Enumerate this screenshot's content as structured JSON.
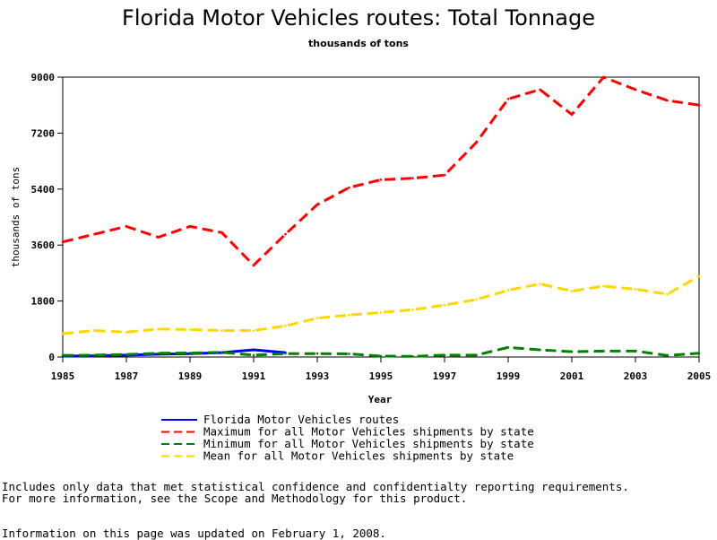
{
  "chart_data": {
    "type": "line",
    "title": "Florida Motor Vehicles routes: Total Tonnage",
    "subtitle": "thousands of tons",
    "xlabel": "Year",
    "ylabel": "thousands of tons",
    "xlim": [
      1985,
      2005
    ],
    "ylim": [
      0,
      9000
    ],
    "xticks": [
      1985,
      1987,
      1989,
      1991,
      1993,
      1995,
      1997,
      1999,
      2001,
      2003,
      2005
    ],
    "yticks": [
      0,
      1800,
      3600,
      5400,
      7200,
      9000
    ],
    "grid": false,
    "legend_position": "bottom",
    "series": [
      {
        "name": "Florida Motor Vehicles routes",
        "color": "#0000ff",
        "style": "solid",
        "x": [
          1985,
          1986,
          1987,
          1988,
          1989,
          1990,
          1991,
          1992
        ],
        "values": [
          30,
          40,
          60,
          90,
          110,
          140,
          230,
          140
        ]
      },
      {
        "name": "Maximum for all Motor Vehicles shipments by state",
        "color": "#ff0000",
        "style": "dashed",
        "x": [
          1985,
          1986,
          1987,
          1988,
          1989,
          1990,
          1991,
          1992,
          1993,
          1994,
          1995,
          1996,
          1997,
          1998,
          1999,
          2000,
          2001,
          2002,
          2003,
          2004,
          2005
        ],
        "values": [
          3700,
          3950,
          4200,
          3850,
          4200,
          4000,
          2950,
          3950,
          4900,
          5450,
          5700,
          5750,
          5850,
          6900,
          8300,
          8600,
          7800,
          9000,
          8600,
          8250,
          8100
        ]
      },
      {
        "name": "Minimum for all Motor Vehicles shipments by state",
        "color": "#008000",
        "style": "dashed",
        "x": [
          1985,
          1986,
          1987,
          1988,
          1989,
          1990,
          1991,
          1992,
          1993,
          1994,
          1995,
          1996,
          1997,
          1998,
          1999,
          2000,
          2001,
          2002,
          2003,
          2004,
          2005
        ],
        "values": [
          50,
          60,
          80,
          120,
          130,
          150,
          60,
          110,
          110,
          100,
          30,
          20,
          60,
          60,
          310,
          230,
          170,
          190,
          190,
          50,
          120
        ]
      },
      {
        "name": "Mean for all Motor Vehicles shipments by state",
        "color": "#ffd700",
        "style": "dashed",
        "x": [
          1985,
          1986,
          1987,
          1988,
          1989,
          1990,
          1991,
          1992,
          1993,
          1994,
          1995,
          1996,
          1997,
          1998,
          1999,
          2000,
          2001,
          2002,
          2003,
          2004,
          2005
        ],
        "values": [
          750,
          850,
          800,
          900,
          880,
          850,
          850,
          1000,
          1250,
          1350,
          1430,
          1520,
          1670,
          1850,
          2150,
          2350,
          2120,
          2280,
          2180,
          2020,
          2600
        ]
      }
    ]
  },
  "footnotes": {
    "line1": "Includes only data that met statistical confidence and confidentialty reporting requirements.",
    "line2": "For more information, see the Scope and Methodology for this product.",
    "line3": "Information on this page was updated on February 1, 2008."
  }
}
